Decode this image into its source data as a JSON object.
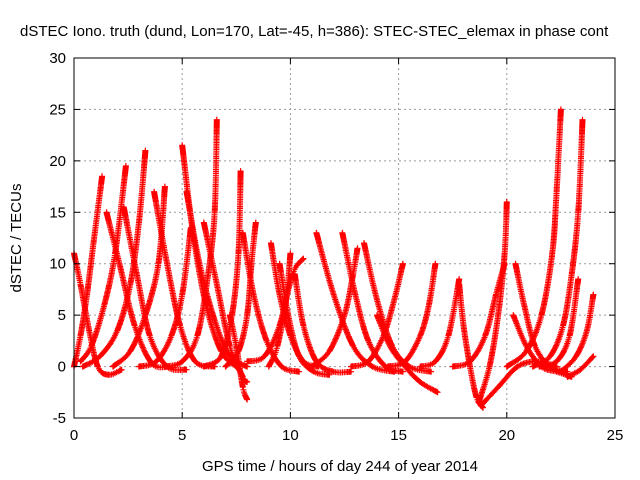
{
  "chart_data": {
    "type": "scatter",
    "title": "dSTEC Iono. truth (dund, Lon=170, Lat=-45, h=386): STEC-STEC_elemax in phase cont",
    "xlabel": "GPS time / hours of day 244 of year 2014",
    "ylabel": "dSTEC  / TECUs",
    "xlim": [
      0,
      25
    ],
    "ylim": [
      -5,
      30
    ],
    "xticks": [
      0,
      5,
      10,
      15,
      20,
      25
    ],
    "yticks": [
      -5,
      0,
      5,
      10,
      15,
      20,
      25,
      30
    ],
    "grid": true,
    "marker": "+",
    "color": "#ff0000",
    "series": [
      {
        "values": [
          [
            0.0,
            11.0
          ],
          [
            0.3,
            8.0
          ],
          [
            0.7,
            3.5
          ],
          [
            1.1,
            0.0
          ],
          [
            1.6,
            -0.8
          ],
          [
            2.2,
            -0.3
          ]
        ]
      },
      {
        "values": [
          [
            0.0,
            0.0
          ],
          [
            0.3,
            3.0
          ],
          [
            0.6,
            7.0
          ],
          [
            0.9,
            12.0
          ],
          [
            1.3,
            18.5
          ]
        ]
      },
      {
        "values": [
          [
            0.3,
            0.5
          ],
          [
            0.8,
            2.0
          ],
          [
            1.4,
            6.0
          ],
          [
            1.9,
            11.0
          ],
          [
            2.4,
            19.5
          ]
        ]
      },
      {
        "values": [
          [
            1.5,
            15.0
          ],
          [
            2.1,
            10.0
          ],
          [
            2.8,
            4.0
          ],
          [
            3.6,
            0.3
          ],
          [
            4.4,
            0.0
          ]
        ]
      },
      {
        "values": [
          [
            0.4,
            0.0
          ],
          [
            1.2,
            1.0
          ],
          [
            2.0,
            3.5
          ],
          [
            2.6,
            8.0
          ],
          [
            3.0,
            14.0
          ],
          [
            3.3,
            21.0
          ]
        ]
      },
      {
        "values": [
          [
            2.3,
            15.5
          ],
          [
            2.9,
            9.0
          ],
          [
            3.5,
            3.0
          ],
          [
            4.3,
            0.0
          ],
          [
            5.2,
            -0.3
          ]
        ]
      },
      {
        "values": [
          [
            1.8,
            0.0
          ],
          [
            2.6,
            1.5
          ],
          [
            3.3,
            5.0
          ],
          [
            3.9,
            10.0
          ],
          [
            4.2,
            17.5
          ]
        ]
      },
      {
        "values": [
          [
            3.7,
            17.0
          ],
          [
            4.3,
            10.0
          ],
          [
            4.9,
            4.0
          ],
          [
            5.6,
            0.5
          ],
          [
            6.5,
            0.0
          ]
        ]
      },
      {
        "values": [
          [
            3.0,
            0.0
          ],
          [
            3.8,
            0.5
          ],
          [
            4.5,
            3.0
          ],
          [
            5.0,
            7.0
          ],
          [
            5.4,
            13.5
          ]
        ]
      },
      {
        "values": [
          [
            5.0,
            21.5
          ],
          [
            5.5,
            13.0
          ],
          [
            6.1,
            6.0
          ],
          [
            6.8,
            1.5
          ],
          [
            7.5,
            0.0
          ]
        ]
      },
      {
        "values": [
          [
            5.2,
            17.0
          ],
          [
            5.8,
            10.0
          ],
          [
            6.5,
            4.5
          ],
          [
            7.2,
            1.0
          ],
          [
            8.0,
            0.0
          ]
        ]
      },
      {
        "values": [
          [
            4.2,
            0.0
          ],
          [
            5.0,
            0.5
          ],
          [
            5.7,
            3.0
          ],
          [
            6.2,
            9.0
          ],
          [
            6.5,
            15.0
          ],
          [
            6.6,
            24.0
          ]
        ]
      },
      {
        "values": [
          [
            6.0,
            14.0
          ],
          [
            6.6,
            8.0
          ],
          [
            7.2,
            2.0
          ],
          [
            7.8,
            -1.0
          ],
          [
            8.0,
            -1.5
          ]
        ]
      },
      {
        "values": [
          [
            6.0,
            0.0
          ],
          [
            6.8,
            1.0
          ],
          [
            7.3,
            5.0
          ],
          [
            7.6,
            11.0
          ],
          [
            7.7,
            19.0
          ]
        ]
      },
      {
        "values": [
          [
            7.8,
            13.0
          ],
          [
            8.3,
            7.0
          ],
          [
            8.9,
            2.5
          ],
          [
            9.6,
            0.0
          ],
          [
            10.4,
            -0.5
          ]
        ]
      },
      {
        "values": [
          [
            7.0,
            0.0
          ],
          [
            7.6,
            1.5
          ],
          [
            8.0,
            5.0
          ],
          [
            8.2,
            10.0
          ],
          [
            8.4,
            14.0
          ]
        ]
      },
      {
        "values": [
          [
            7.2,
            5.0
          ],
          [
            7.5,
            2.0
          ],
          [
            7.8,
            -2.0
          ],
          [
            8.0,
            -3.2
          ]
        ]
      },
      {
        "values": [
          [
            9.1,
            12.0
          ],
          [
            9.5,
            7.0
          ],
          [
            10.0,
            3.0
          ],
          [
            10.6,
            0.5
          ],
          [
            11.3,
            0.0
          ]
        ]
      },
      {
        "values": [
          [
            9.0,
            0.0
          ],
          [
            9.4,
            2.0
          ],
          [
            9.8,
            6.5
          ],
          [
            10.0,
            11.0
          ]
        ]
      },
      {
        "values": [
          [
            9.5,
            10.0
          ],
          [
            9.9,
            5.0
          ],
          [
            10.4,
            1.0
          ],
          [
            11.1,
            -0.5
          ],
          [
            11.8,
            -0.8
          ]
        ]
      },
      {
        "values": [
          [
            8.0,
            0.5
          ],
          [
            8.8,
            1.0
          ],
          [
            9.5,
            4.0
          ],
          [
            10.1,
            9.0
          ],
          [
            10.6,
            10.5
          ]
        ]
      },
      {
        "values": [
          [
            10.2,
            9.0
          ],
          [
            10.6,
            4.0
          ],
          [
            11.2,
            0.5
          ],
          [
            12.0,
            -0.5
          ],
          [
            12.8,
            -0.5
          ]
        ]
      },
      {
        "values": [
          [
            11.2,
            13.0
          ],
          [
            12.0,
            7.0
          ],
          [
            12.9,
            2.0
          ],
          [
            13.8,
            0.0
          ],
          [
            14.8,
            -0.5
          ]
        ]
      },
      {
        "values": [
          [
            11.0,
            0.0
          ],
          [
            11.8,
            1.5
          ],
          [
            12.5,
            5.0
          ],
          [
            12.9,
            9.0
          ],
          [
            13.1,
            11.5
          ]
        ]
      },
      {
        "values": [
          [
            12.4,
            13.0
          ],
          [
            13.0,
            7.0
          ],
          [
            13.6,
            2.5
          ],
          [
            14.4,
            0.0
          ],
          [
            15.2,
            -0.5
          ]
        ]
      },
      {
        "values": [
          [
            13.4,
            12.0
          ],
          [
            14.0,
            6.5
          ],
          [
            14.7,
            2.0
          ],
          [
            15.5,
            0.0
          ],
          [
            16.5,
            -0.5
          ]
        ]
      },
      {
        "values": [
          [
            12.8,
            0.0
          ],
          [
            13.6,
            0.5
          ],
          [
            14.3,
            3.0
          ],
          [
            14.8,
            6.5
          ],
          [
            15.2,
            10.0
          ]
        ]
      },
      {
        "values": [
          [
            14.0,
            5.0
          ],
          [
            14.6,
            2.0
          ],
          [
            15.3,
            0.0
          ],
          [
            16.0,
            -1.5
          ],
          [
            16.8,
            -2.5
          ]
        ]
      },
      {
        "values": [
          [
            14.5,
            0.0
          ],
          [
            15.3,
            0.5
          ],
          [
            16.0,
            3.0
          ],
          [
            16.4,
            6.0
          ],
          [
            16.7,
            10.0
          ]
        ]
      },
      {
        "values": [
          [
            16.0,
            0.0
          ],
          [
            16.7,
            0.5
          ],
          [
            17.3,
            3.0
          ],
          [
            17.8,
            8.5
          ]
        ]
      },
      {
        "values": [
          [
            17.8,
            8.0
          ],
          [
            18.0,
            4.0
          ],
          [
            18.3,
            0.0
          ],
          [
            18.6,
            -3.0
          ],
          [
            18.9,
            -4.0
          ]
        ]
      },
      {
        "values": [
          [
            18.7,
            -3.5
          ],
          [
            19.2,
            0.0
          ],
          [
            19.6,
            5.0
          ],
          [
            19.9,
            11.0
          ],
          [
            20.0,
            16.0
          ]
        ]
      },
      {
        "values": [
          [
            17.5,
            0.0
          ],
          [
            18.3,
            0.5
          ],
          [
            19.0,
            3.0
          ],
          [
            19.5,
            7.0
          ],
          [
            19.9,
            10.0
          ]
        ]
      },
      {
        "values": [
          [
            18.8,
            -3.8
          ],
          [
            19.6,
            -2.0
          ],
          [
            20.5,
            0.0
          ],
          [
            21.4,
            0.5
          ],
          [
            22.3,
            0.0
          ]
        ]
      },
      {
        "values": [
          [
            20.4,
            10.0
          ],
          [
            20.8,
            6.0
          ],
          [
            21.3,
            2.0
          ],
          [
            22.0,
            0.0
          ],
          [
            22.8,
            -0.5
          ]
        ]
      },
      {
        "values": [
          [
            20.3,
            5.0
          ],
          [
            20.9,
            2.0
          ],
          [
            21.6,
            0.0
          ],
          [
            22.3,
            -0.5
          ],
          [
            23.0,
            -1.0
          ]
        ]
      },
      {
        "values": [
          [
            20.0,
            0.0
          ],
          [
            20.9,
            1.5
          ],
          [
            21.6,
            5.0
          ],
          [
            22.1,
            11.0
          ],
          [
            22.3,
            17.0
          ],
          [
            22.5,
            25.0
          ]
        ]
      },
      {
        "values": [
          [
            21.2,
            0.0
          ],
          [
            22.0,
            1.0
          ],
          [
            22.6,
            4.0
          ],
          [
            23.0,
            9.0
          ],
          [
            23.3,
            15.0
          ],
          [
            23.5,
            24.0
          ]
        ]
      },
      {
        "values": [
          [
            21.5,
            0.0
          ],
          [
            22.3,
            0.5
          ],
          [
            22.9,
            3.0
          ],
          [
            23.3,
            8.5
          ]
        ]
      },
      {
        "values": [
          [
            22.5,
            -0.5
          ],
          [
            23.2,
            1.0
          ],
          [
            23.7,
            3.5
          ],
          [
            24.0,
            7.0
          ]
        ]
      },
      {
        "values": [
          [
            22.8,
            -1.0
          ],
          [
            23.4,
            -0.3
          ],
          [
            24.0,
            1.0
          ]
        ]
      }
    ]
  }
}
